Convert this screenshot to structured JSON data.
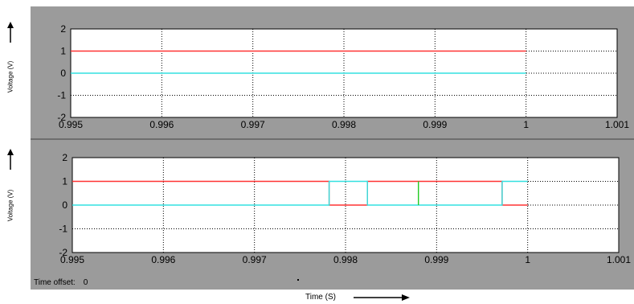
{
  "time_offset": {
    "label": "Time offset:",
    "value": "0"
  },
  "x_axis_label": "Time (S)",
  "colors": {
    "frame": "#9b9b9b",
    "plot_bg": "#ffffff",
    "grid": "#000000"
  },
  "chart_data": [
    {
      "type": "line",
      "ylabel": "Voltage (V)",
      "xlim": [
        0.995,
        1.001
      ],
      "ylim": [
        -2,
        2
      ],
      "grid": true,
      "x_ticks": [
        "0.995",
        "0.996",
        "0.997",
        "0.998",
        "0.999",
        "1",
        "1.001"
      ],
      "y_ticks": [
        "2",
        "1",
        "0",
        "-1",
        "-2"
      ],
      "series": [
        {
          "color": "#ff3333",
          "x": [
            0.995,
            1.0
          ],
          "y": [
            1,
            1
          ]
        },
        {
          "color": "#33e0e0",
          "x": [
            0.995,
            1.0
          ],
          "y": [
            0,
            0
          ]
        }
      ]
    },
    {
      "type": "line",
      "ylabel": "Voltage (V)",
      "xlim": [
        0.995,
        1.001
      ],
      "ylim": [
        -2,
        2
      ],
      "grid": true,
      "x_ticks": [
        "0.995",
        "0.996",
        "0.997",
        "0.998",
        "0.999",
        "1",
        "1.001"
      ],
      "y_ticks": [
        "2",
        "1",
        "0",
        "-1",
        "-2"
      ],
      "series": [
        {
          "color": "#ff3333",
          "x": [
            0.995,
            0.99782,
            0.99782,
            0.99824,
            0.99824,
            0.99972,
            0.99972,
            1.0
          ],
          "y": [
            1,
            1,
            0,
            0,
            1,
            1,
            0,
            0
          ]
        },
        {
          "color": "#33e0e0",
          "x": [
            0.995,
            0.99782,
            0.99782,
            0.99824,
            0.99824,
            0.99972,
            0.99972,
            1.0
          ],
          "y": [
            0,
            0,
            1,
            1,
            0,
            0,
            1,
            1
          ]
        },
        {
          "color": "#22cc22",
          "x": [
            0.9988,
            0.9988
          ],
          "y": [
            0,
            1
          ]
        }
      ]
    }
  ]
}
